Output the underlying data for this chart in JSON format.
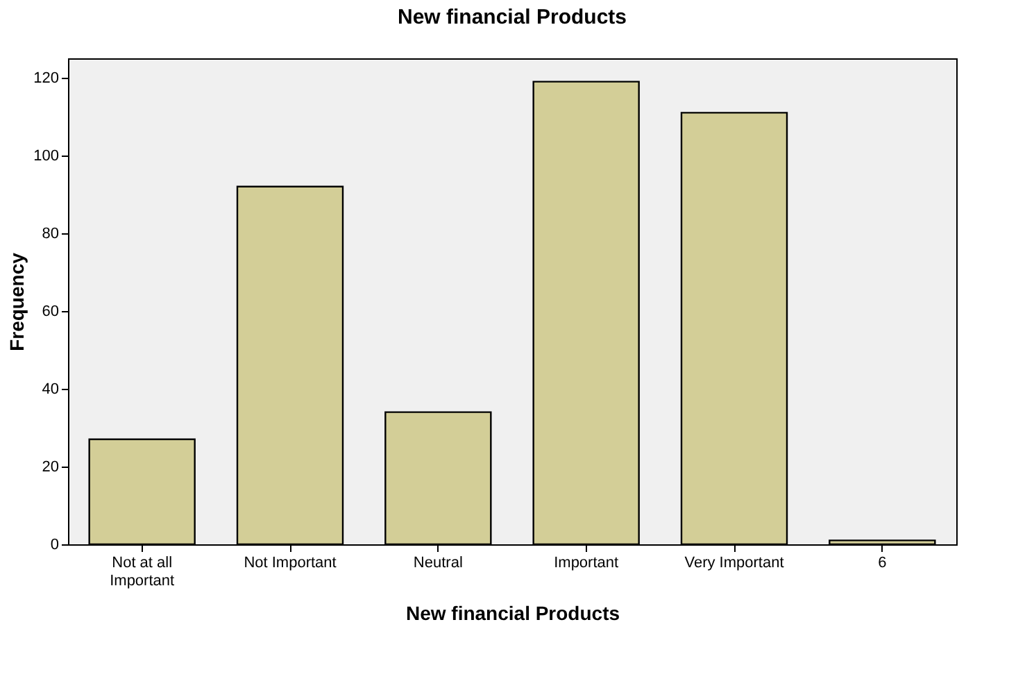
{
  "chart_data": {
    "type": "bar",
    "title": "New financial Products",
    "xlabel": "New financial Products",
    "ylabel": "Frequency",
    "categories": [
      "Not at all Important",
      "Not Important",
      "Neutral",
      "Important",
      "Very Important",
      "6"
    ],
    "values": [
      27,
      92,
      34,
      119,
      111,
      1
    ],
    "color": "#d3ce97",
    "ylim": [
      0,
      125
    ],
    "yticks": [
      0,
      20,
      40,
      60,
      80,
      100,
      120
    ],
    "grid": false
  }
}
